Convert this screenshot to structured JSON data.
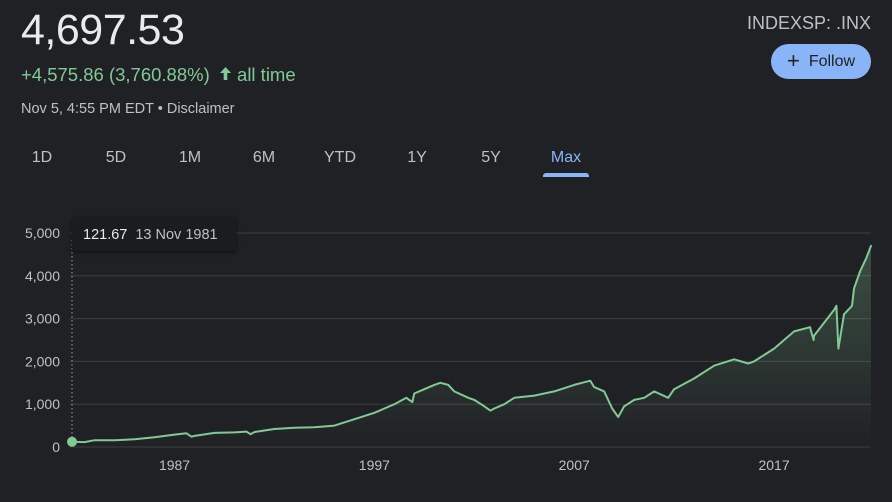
{
  "header": {
    "price": "4,697.53",
    "change": "+4,575.86 (3,760.88%)",
    "change_period": "all time",
    "timestamp": "Nov 5, 4:55 PM EDT",
    "separator": "•",
    "disclaimer": "Disclaimer",
    "ticker": "INDEXSP: .INX",
    "follow_label": "Follow"
  },
  "tabs": [
    {
      "label": "1D",
      "active": false
    },
    {
      "label": "5D",
      "active": false
    },
    {
      "label": "1M",
      "active": false
    },
    {
      "label": "6M",
      "active": false
    },
    {
      "label": "YTD",
      "active": false
    },
    {
      "label": "1Y",
      "active": false
    },
    {
      "label": "5Y",
      "active": false
    },
    {
      "label": "Max",
      "active": true
    }
  ],
  "tooltip": {
    "value": "121.67",
    "date": "13 Nov 1981"
  },
  "colors": {
    "line": "#81c995",
    "accent": "#8ab4f8",
    "grid": "#3c4043",
    "text": "#bdc1c6"
  },
  "chart_data": {
    "type": "area",
    "xlim": [
      1981.87,
      2021.85
    ],
    "ylim": [
      0,
      5000
    ],
    "yticks": [
      0,
      1000,
      2000,
      3000,
      4000,
      5000
    ],
    "ytick_labels": [
      "0",
      "1,000",
      "2,000",
      "3,000",
      "4,000",
      "5,000"
    ],
    "xticks": [
      1987,
      1997,
      2007,
      2017
    ],
    "xtick_labels": [
      "1987",
      "1997",
      "2007",
      "2017"
    ],
    "grid": true,
    "hover_point": {
      "x": 1981.87,
      "y": 121.67
    },
    "series": [
      {
        "x": [
          1981.87,
          1982.5,
          1983,
          1984,
          1985,
          1986,
          1987,
          1987.6,
          1987.85,
          1988,
          1989,
          1990,
          1990.6,
          1990.8,
          1991,
          1992,
          1993,
          1994,
          1995,
          1996,
          1997,
          1997.5,
          1998,
          1998.6,
          1998.9,
          1999,
          1999.5,
          2000,
          2000.3,
          2000.7,
          2001,
          2001.7,
          2002,
          2002.5,
          2002.8,
          2003,
          2003.5,
          2004,
          2005,
          2006,
          2007,
          2007.8,
          2008,
          2008.5,
          2008.9,
          2009.2,
          2009.5,
          2010,
          2010.5,
          2011,
          2011.7,
          2012,
          2013,
          2014,
          2015,
          2015.7,
          2016,
          2016.5,
          2017,
          2018,
          2018.8,
          2018.98,
          2019,
          2019.5,
          2020.0,
          2020.12,
          2020.22,
          2020.5,
          2020.9,
          2021,
          2021.3,
          2021.6,
          2021.85
        ],
        "y": [
          121.67,
          115,
          160,
          160,
          180,
          230,
          290,
          320,
          240,
          260,
          330,
          340,
          360,
          300,
          350,
          420,
          450,
          460,
          500,
          650,
          800,
          900,
          1000,
          1150,
          1050,
          1250,
          1350,
          1450,
          1500,
          1450,
          1300,
          1150,
          1100,
          950,
          850,
          900,
          1000,
          1150,
          1200,
          1300,
          1450,
          1550,
          1400,
          1300,
          900,
          700,
          950,
          1100,
          1150,
          1300,
          1150,
          1350,
          1600,
          1900,
          2050,
          1950,
          2000,
          2150,
          2300,
          2700,
          2800,
          2500,
          2600,
          2900,
          3200,
          3300,
          2300,
          3100,
          3300,
          3700,
          4100,
          4400,
          4697.53
        ]
      }
    ]
  }
}
